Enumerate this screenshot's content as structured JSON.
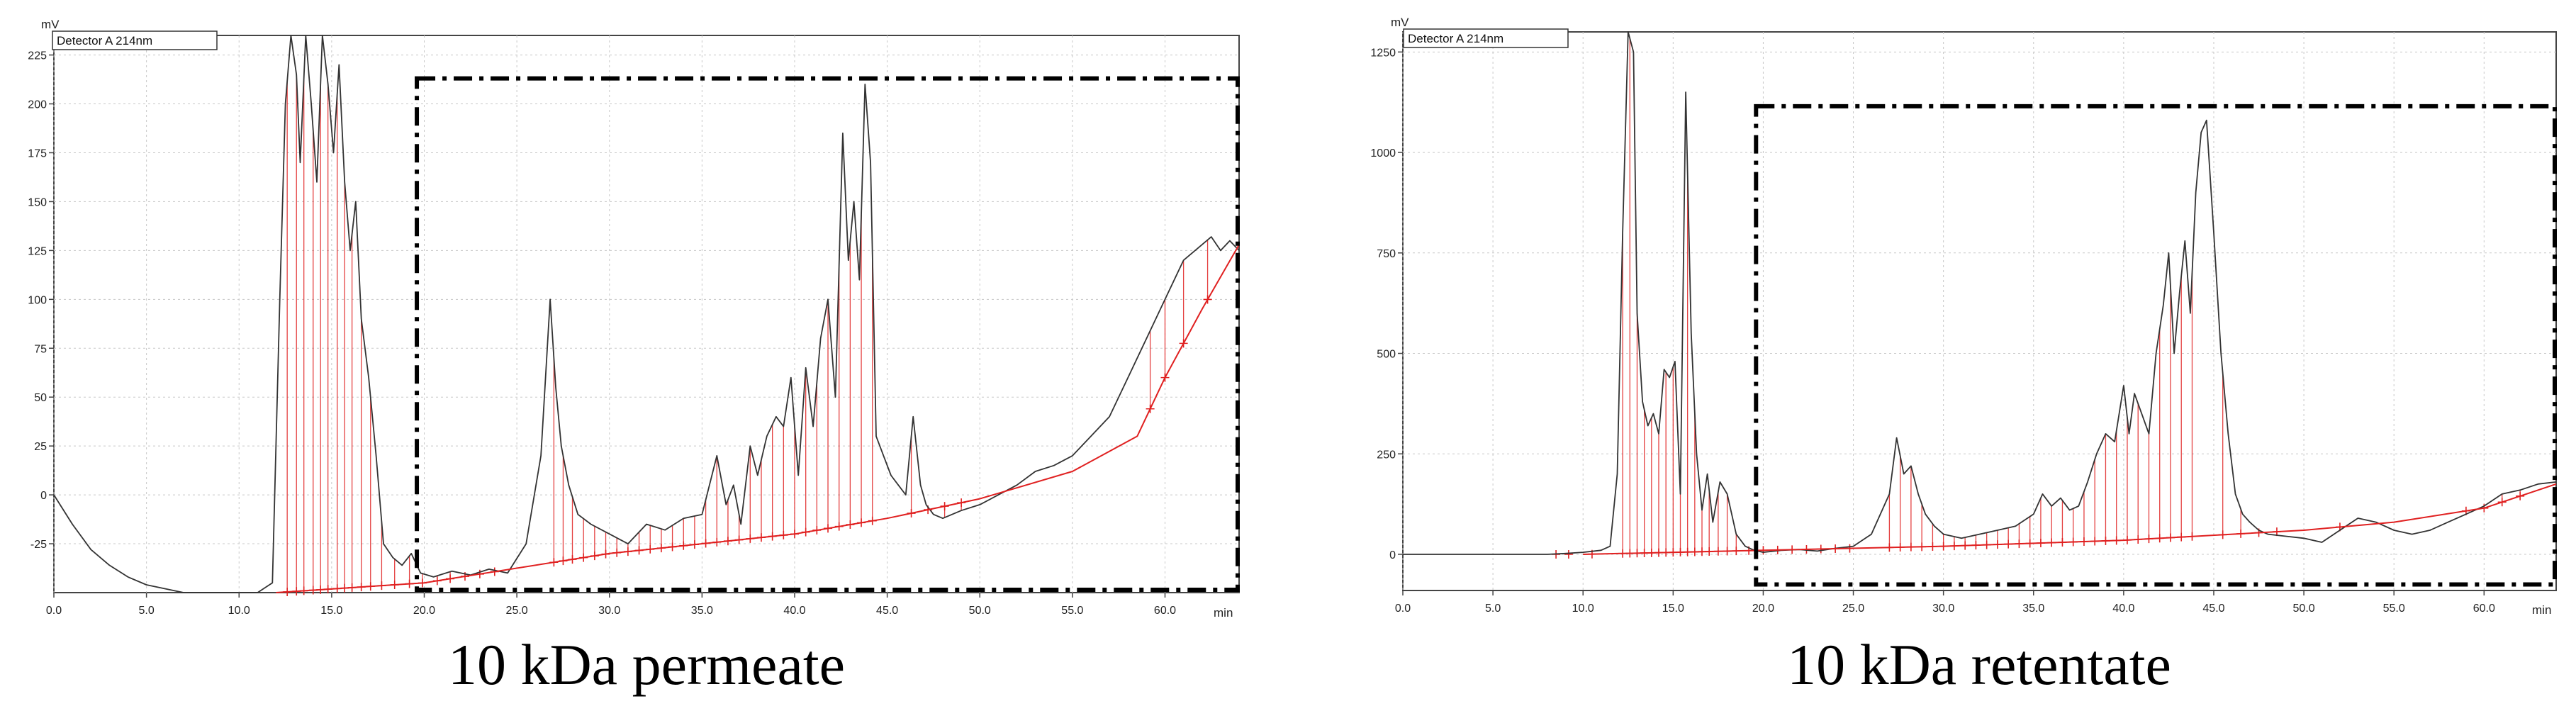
{
  "chart_data": [
    {
      "type": "line",
      "caption": "10 kDa permeate",
      "detector_label": "Detector A 214nm",
      "y_unit": "mV",
      "x_unit": "min",
      "xlim": [
        0,
        64
      ],
      "ylim": [
        -50,
        235
      ],
      "x_ticks": [
        "0.0",
        "5.0",
        "10.0",
        "15.0",
        "20.0",
        "25.0",
        "30.0",
        "35.0",
        "40.0",
        "45.0",
        "50.0",
        "55.0",
        "60.0"
      ],
      "y_ticks": [
        "-25",
        "0",
        "25",
        "50",
        "75",
        "100",
        "125",
        "150",
        "175",
        "200",
        "225"
      ],
      "grid": true,
      "series": [
        {
          "role": "chromatogram",
          "color": "#333333",
          "x": [
            0,
            1,
            2,
            3,
            4,
            5,
            6,
            7,
            8,
            9,
            10,
            11,
            11.8,
            12.2,
            12.5,
            12.8,
            13.1,
            13.3,
            13.6,
            13.9,
            14.2,
            14.5,
            14.8,
            15.1,
            15.4,
            15.7,
            16,
            16.3,
            16.6,
            17,
            17.4,
            17.8,
            18.3,
            18.8,
            19.3,
            19.8,
            20.5,
            21.5,
            22.5,
            23.5,
            24.5,
            25.5,
            26.3,
            26.8,
            27.1,
            27.4,
            27.8,
            28.3,
            29,
            30,
            31,
            32,
            33,
            34,
            35,
            35.8,
            36.3,
            36.7,
            37.1,
            37.6,
            38,
            38.5,
            39,
            39.4,
            39.8,
            40.2,
            40.6,
            41,
            41.4,
            41.8,
            42.2,
            42.6,
            42.9,
            43.2,
            43.5,
            43.8,
            44.1,
            44.4,
            44.8,
            45.2,
            45.6,
            46,
            46.4,
            46.8,
            47.1,
            47.5,
            48,
            49,
            50,
            51,
            52,
            53,
            54,
            55,
            56,
            57,
            58,
            59,
            60,
            61,
            62,
            62.5,
            63,
            63.5,
            64
          ],
          "y": [
            0,
            -15,
            -28,
            -36,
            -42,
            -46,
            -48,
            -50,
            -51,
            -51,
            -51,
            -50,
            -45,
            100,
            200,
            238,
            215,
            170,
            238,
            200,
            160,
            238,
            210,
            175,
            220,
            160,
            125,
            150,
            90,
            60,
            20,
            -25,
            -32,
            -36,
            -30,
            -40,
            -42,
            -39,
            -41,
            -38,
            -40,
            -25,
            20,
            100,
            55,
            25,
            5,
            -10,
            -15,
            -20,
            -25,
            -15,
            -18,
            -12,
            -10,
            20,
            -5,
            5,
            -15,
            25,
            10,
            30,
            40,
            35,
            60,
            10,
            65,
            35,
            80,
            100,
            50,
            185,
            120,
            150,
            110,
            210,
            170,
            30,
            20,
            10,
            5,
            0,
            40,
            5,
            -5,
            -10,
            -12,
            -8,
            -5,
            0,
            5,
            12,
            15,
            20,
            30,
            40,
            60,
            80,
            100,
            120,
            128,
            132,
            125,
            130,
            125
          ]
        },
        {
          "role": "baseline",
          "color": "#e02020",
          "x": [
            12,
            20,
            30,
            40,
            45,
            50,
            55,
            58.5,
            60,
            62,
            64
          ],
          "y": [
            -50,
            -45,
            -30,
            -20,
            -12,
            -2,
            12,
            30,
            60,
            95,
            128
          ]
        }
      ],
      "peak_markers_x": [
        12.6,
        13.1,
        13.5,
        14.0,
        14.4,
        14.8,
        15.3,
        15.7,
        16.1,
        16.6,
        17.1,
        17.7,
        18.4,
        19.2,
        19.9,
        20.7,
        21.4,
        22.2,
        23.0,
        23.8,
        27.0,
        27.5,
        28.0,
        28.6,
        29.2,
        29.8,
        30.4,
        31.0,
        31.6,
        32.2,
        32.8,
        33.4,
        34.0,
        34.6,
        35.2,
        35.8,
        36.4,
        37.0,
        37.6,
        38.2,
        38.8,
        39.4,
        40.0,
        40.6,
        41.2,
        41.8,
        42.4,
        43.0,
        43.6,
        44.2,
        46.3,
        47.2,
        48.1,
        49.0,
        59.2,
        60.0,
        61.0,
        62.3
      ],
      "selection_box": {
        "x0": 19.6,
        "x1": 64,
        "y0": -50,
        "y1": 213
      }
    },
    {
      "type": "line",
      "caption": "10 kDa retentate",
      "detector_label": "Detector A 214nm",
      "y_unit": "mV",
      "x_unit": "min",
      "xlim": [
        0,
        64
      ],
      "ylim": [
        -90,
        1300
      ],
      "x_ticks": [
        "0.0",
        "5.0",
        "10.0",
        "15.0",
        "20.0",
        "25.0",
        "30.0",
        "35.0",
        "40.0",
        "45.0",
        "50.0",
        "55.0",
        "60.0"
      ],
      "y_ticks": [
        "0",
        "250",
        "500",
        "750",
        "1000",
        "1250"
      ],
      "grid": true,
      "series": [
        {
          "role": "chromatogram",
          "color": "#333333",
          "x": [
            0,
            5,
            8,
            9,
            10,
            11,
            11.5,
            11.9,
            12.2,
            12.5,
            12.8,
            13.0,
            13.3,
            13.6,
            13.9,
            14.2,
            14.5,
            14.8,
            15.1,
            15.4,
            15.7,
            16.0,
            16.3,
            16.6,
            16.9,
            17.2,
            17.6,
            18.0,
            18.5,
            19.0,
            19.5,
            20.0,
            21,
            22,
            23,
            24,
            25,
            26,
            27,
            27.4,
            27.8,
            28.2,
            28.6,
            29,
            29.5,
            30,
            31,
            32,
            33,
            34,
            35,
            35.5,
            36,
            36.5,
            37,
            37.5,
            38,
            38.5,
            39,
            39.5,
            40,
            40.3,
            40.6,
            41,
            41.4,
            41.8,
            42.2,
            42.5,
            42.8,
            43.1,
            43.4,
            43.7,
            44,
            44.3,
            44.6,
            45,
            45.4,
            45.8,
            46.2,
            46.6,
            47,
            47.5,
            48,
            49,
            50,
            51,
            52,
            53,
            54,
            55,
            56,
            57,
            58,
            59,
            60,
            61,
            62,
            63,
            64
          ],
          "y": [
            0,
            0,
            0,
            2,
            5,
            10,
            20,
            200,
            800,
            1300,
            1250,
            600,
            380,
            320,
            350,
            300,
            460,
            440,
            480,
            150,
            1150,
            550,
            250,
            110,
            200,
            80,
            180,
            150,
            50,
            20,
            10,
            5,
            10,
            12,
            8,
            15,
            20,
            50,
            150,
            290,
            200,
            220,
            150,
            100,
            70,
            50,
            40,
            50,
            60,
            70,
            100,
            150,
            120,
            140,
            110,
            120,
            180,
            250,
            300,
            280,
            420,
            300,
            400,
            350,
            300,
            500,
            620,
            750,
            500,
            650,
            780,
            600,
            900,
            1050,
            1080,
            800,
            500,
            300,
            150,
            100,
            80,
            60,
            50,
            45,
            40,
            30,
            60,
            90,
            80,
            60,
            50,
            60,
            80,
            100,
            120,
            150,
            160,
            175,
            180
          ]
        },
        {
          "role": "baseline",
          "color": "#e02020",
          "x": [
            10,
            20,
            30,
            40,
            50,
            55,
            60,
            64
          ],
          "y": [
            0,
            10,
            20,
            35,
            60,
            80,
            115,
            175
          ]
        }
      ],
      "peak_markers_x": [
        8.5,
        9.2,
        10.5,
        12.2,
        12.6,
        13.0,
        13.4,
        13.8,
        14.2,
        14.6,
        15.0,
        15.4,
        15.8,
        16.2,
        16.6,
        17.0,
        17.5,
        18.0,
        18.5,
        19.2,
        20.0,
        20.8,
        21.6,
        22.4,
        23.2,
        24.0,
        24.8,
        27.0,
        27.6,
        28.2,
        28.8,
        29.4,
        30.0,
        30.6,
        31.2,
        31.8,
        32.4,
        33.0,
        33.6,
        34.2,
        34.8,
        35.4,
        36.0,
        36.6,
        37.2,
        37.8,
        38.4,
        39.0,
        39.6,
        40.2,
        40.8,
        41.4,
        42.0,
        42.6,
        43.2,
        43.8,
        45.5,
        46.5,
        47.5,
        48.5,
        52.0,
        59.0,
        60.0,
        61.0,
        62.0
      ],
      "selection_box": {
        "x0": 19.6,
        "x1": 64,
        "y0": -75,
        "y1": 1115
      }
    }
  ]
}
